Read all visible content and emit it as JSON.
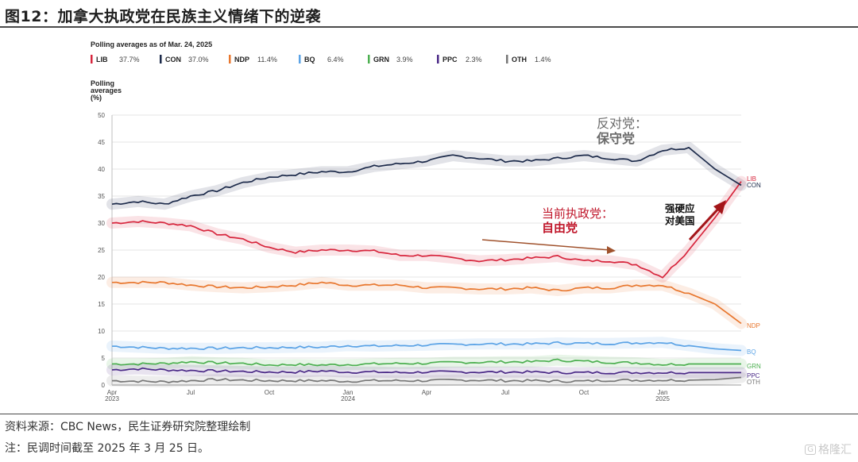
{
  "figure_title": "图12：加拿大执政党在民族主义情绪下的逆袭",
  "source": "资料来源：CBC News，民生证券研究院整理绘制",
  "note": "注：民调时间截至 2025 年 3 月 25 日。",
  "watermark": "格隆汇",
  "watermark_badge": "G",
  "chart_data": {
    "type": "line",
    "subtitle": "Polling averages as of Mar. 24, 2025",
    "ylabel": [
      "Polling",
      "averages",
      "(%)"
    ],
    "ylim": [
      0,
      50
    ],
    "yticks": [
      0,
      5,
      10,
      15,
      20,
      25,
      30,
      35,
      40,
      45,
      50
    ],
    "grid": "horizontal",
    "x_months": [
      "2023-04",
      "2023-05",
      "2023-06",
      "2023-07",
      "2023-08",
      "2023-09",
      "2023-10",
      "2023-11",
      "2023-12",
      "2024-01",
      "2024-02",
      "2024-03",
      "2024-04",
      "2024-05",
      "2024-06",
      "2024-07",
      "2024-08",
      "2024-09",
      "2024-10",
      "2024-11",
      "2024-12",
      "2025-01",
      "2025-02",
      "2025-03",
      "2025-03-24"
    ],
    "xticks": [
      {
        "x": "2023-04",
        "label": "Apr",
        "year": "2023"
      },
      {
        "x": "2023-07",
        "label": "Jul",
        "year": ""
      },
      {
        "x": "2023-10",
        "label": "Oct",
        "year": ""
      },
      {
        "x": "2024-01",
        "label": "Jan",
        "year": "2024"
      },
      {
        "x": "2024-04",
        "label": "Apr",
        "year": ""
      },
      {
        "x": "2024-07",
        "label": "Jul",
        "year": ""
      },
      {
        "x": "2024-10",
        "label": "Oct",
        "year": ""
      },
      {
        "x": "2025-01",
        "label": "Jan",
        "year": "2025"
      }
    ],
    "series": [
      {
        "key": "LIB",
        "name": "LIB",
        "value_label": "37.7%",
        "end_label": "LIB",
        "color": "#d7263d",
        "values": [
          30.0,
          30.3,
          30.0,
          29.5,
          28.0,
          27.0,
          25.5,
          24.6,
          25.0,
          25.0,
          24.8,
          24.0,
          24.0,
          23.5,
          23.0,
          23.2,
          23.5,
          23.8,
          23.0,
          23.0,
          22.3,
          20.0,
          25.0,
          31.0,
          37.7
        ]
      },
      {
        "key": "CON",
        "name": "CON",
        "value_label": "37.0%",
        "end_label": "CON",
        "color": "#1c2a4a",
        "values": [
          33.5,
          34.0,
          33.5,
          35.0,
          36.0,
          37.5,
          38.5,
          39.0,
          39.5,
          39.5,
          40.5,
          41.0,
          41.5,
          42.5,
          42.0,
          41.5,
          41.5,
          42.0,
          42.5,
          42.0,
          41.5,
          43.5,
          44.0,
          40.0,
          37.0
        ]
      },
      {
        "key": "NDP",
        "name": "NDP",
        "value_label": "11.4%",
        "end_label": "NDP",
        "color": "#e8772e",
        "values": [
          19.0,
          19.0,
          19.0,
          18.5,
          18.2,
          18.0,
          18.2,
          18.5,
          19.0,
          18.5,
          18.5,
          18.5,
          18.0,
          18.0,
          17.8,
          17.8,
          18.0,
          17.5,
          18.0,
          18.0,
          18.5,
          18.5,
          17.0,
          15.0,
          11.4
        ]
      },
      {
        "key": "BQ",
        "name": "BQ",
        "value_label": "6.4%",
        "end_label": "BQ",
        "color": "#5ba3e6",
        "values": [
          7.2,
          7.0,
          6.8,
          6.8,
          6.8,
          6.9,
          6.9,
          7.0,
          7.0,
          7.3,
          7.2,
          7.3,
          7.4,
          7.5,
          7.6,
          7.6,
          7.6,
          7.8,
          7.7,
          7.7,
          7.8,
          7.9,
          7.3,
          6.7,
          6.4
        ]
      },
      {
        "key": "GRN",
        "name": "GRN",
        "value_label": "3.9%",
        "end_label": "GRN",
        "color": "#4caf50",
        "values": [
          3.9,
          3.9,
          4.0,
          4.3,
          4.1,
          4.0,
          3.7,
          3.8,
          3.7,
          3.8,
          3.9,
          4.0,
          4.0,
          4.2,
          4.2,
          4.3,
          4.3,
          4.6,
          4.4,
          4.2,
          4.1,
          3.8,
          3.9,
          3.9,
          3.9
        ]
      },
      {
        "key": "PPC",
        "name": "PPC",
        "value_label": "2.3%",
        "end_label": "PPC",
        "color": "#4b2a87",
        "values": [
          2.8,
          3.0,
          2.8,
          2.7,
          2.6,
          2.5,
          2.4,
          2.4,
          2.6,
          2.4,
          2.4,
          2.3,
          2.4,
          2.4,
          2.4,
          2.4,
          2.4,
          2.3,
          2.3,
          2.3,
          2.3,
          2.3,
          2.3,
          2.3,
          2.3
        ]
      },
      {
        "key": "OTH",
        "name": "OTH",
        "value_label": "1.4%",
        "end_label": "OTH",
        "color": "#777777",
        "values": [
          0.8,
          0.7,
          0.6,
          0.8,
          1.0,
          0.9,
          0.8,
          0.8,
          0.8,
          0.7,
          0.8,
          0.8,
          0.8,
          0.9,
          0.9,
          0.8,
          0.8,
          0.7,
          0.7,
          0.9,
          0.9,
          0.9,
          0.9,
          1.0,
          1.4
        ]
      }
    ],
    "annotations": [
      {
        "key": "con",
        "lines": [
          "反对党：",
          "保守党"
        ],
        "colors": [
          "#6b6b6b",
          "#6b6b6b"
        ]
      },
      {
        "key": "lib",
        "lines": [
          "当前执政党：",
          "自由党"
        ],
        "colors": [
          "#c0172b",
          "#c0172b"
        ]
      },
      {
        "key": "hardline",
        "lines": [
          "强硬应",
          "对美国"
        ],
        "colors": [
          "#111111",
          "#111111"
        ]
      }
    ]
  }
}
